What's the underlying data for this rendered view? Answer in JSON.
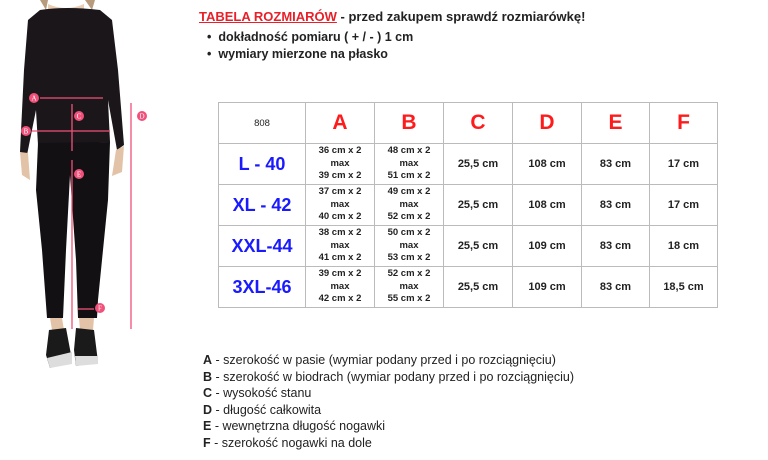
{
  "heading": {
    "title": "TABELA ROZMIARÓW",
    "subtitle": " - przed zakupem sprawdź rozmiarówkę!"
  },
  "bullets": [
    "dokładność pomiaru ( + / - ) 1 cm",
    "wymiary mierzone na płasko"
  ],
  "figure": {
    "labels": [
      "A",
      "B",
      "C",
      "D",
      "E",
      "F"
    ],
    "arrow_color": "#f0507a"
  },
  "table": {
    "code": "808",
    "columns": [
      "A",
      "B",
      "C",
      "D",
      "E",
      "F"
    ],
    "rows": [
      {
        "size": "L - 40",
        "cells": [
          [
            "36 cm x 2",
            "max",
            "39 cm x 2"
          ],
          [
            "48 cm x 2",
            "max",
            "51 cm x 2"
          ],
          "25,5 cm",
          "108 cm",
          "83 cm",
          "17 cm"
        ]
      },
      {
        "size": "XL - 42",
        "cells": [
          [
            "37 cm x 2",
            "max",
            "40 cm x 2"
          ],
          [
            "49 cm x 2",
            "max",
            "52 cm x 2"
          ],
          "25,5 cm",
          "108 cm",
          "83 cm",
          "17 cm"
        ]
      },
      {
        "size": "XXL-44",
        "cells": [
          [
            "38 cm x 2",
            "max",
            "41 cm x 2"
          ],
          [
            "50 cm x 2",
            "max",
            "53 cm x 2"
          ],
          "25,5 cm",
          "109 cm",
          "83 cm",
          "18 cm"
        ]
      },
      {
        "size": "3XL-46",
        "cells": [
          [
            "39 cm x 2",
            "max",
            "42 cm x 2"
          ],
          [
            "52 cm x 2",
            "max",
            "55 cm x 2"
          ],
          "25,5 cm",
          "109 cm",
          "83 cm",
          "18,5 cm"
        ]
      }
    ]
  },
  "legend": [
    {
      "key": "A",
      "text": " - szerokość w pasie (wymiar podany przed i po rozciągnięciu)"
    },
    {
      "key": "B",
      "text": " - szerokość w biodrach (wymiar podany przed i po rozciągnięciu)"
    },
    {
      "key": "C",
      "text": " - wysokość stanu"
    },
    {
      "key": "D",
      "text": " - długość całkowita"
    },
    {
      "key": "E",
      "text": " - wewnętrzna długość nogawki"
    },
    {
      "key": "F",
      "text": " - szerokość nogawki na dole"
    }
  ],
  "colors": {
    "accent_red": "#ff1b1b",
    "size_blue": "#1a1aff"
  }
}
